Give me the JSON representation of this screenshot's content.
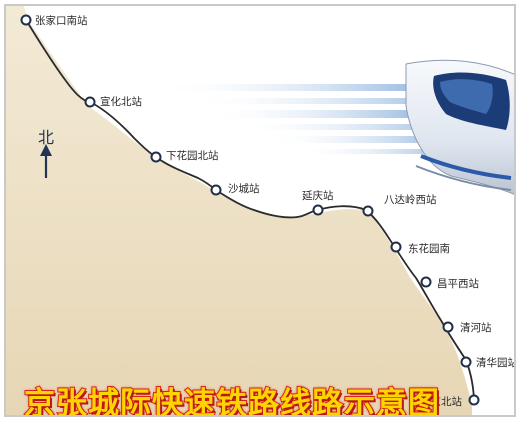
{
  "map": {
    "north_label": "北",
    "title": "京张城际快速铁路线路示意图",
    "colors": {
      "terrain": "#e9dcc0",
      "line": "#2b2b2b",
      "station_ring": "#1f2f4a",
      "title_fill": "#ffd400",
      "title_stroke": "#d8261c"
    },
    "stations": [
      {
        "name": "张家口南站"
      },
      {
        "name": "宣化北站"
      },
      {
        "name": "下花园北站"
      },
      {
        "name": "沙城站"
      },
      {
        "name": "延庆站"
      },
      {
        "name": "八达岭西站"
      },
      {
        "name": "东花园南"
      },
      {
        "name": "昌平西站"
      },
      {
        "name": "清河站"
      },
      {
        "name": "清华园站"
      },
      {
        "name": "北京北站"
      }
    ]
  }
}
